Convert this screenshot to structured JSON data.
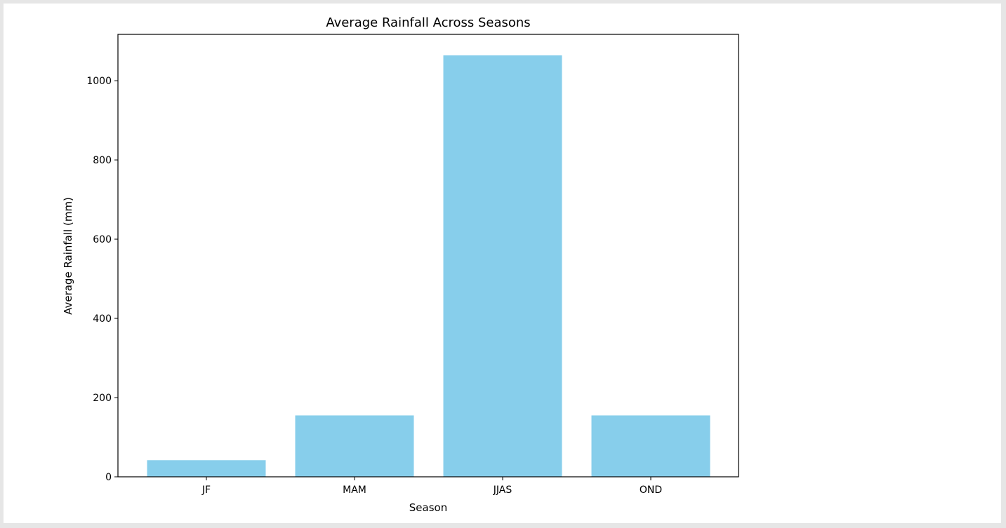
{
  "chart_data": {
    "type": "bar",
    "title": "Average Rainfall Across Seasons",
    "xlabel": "Season",
    "ylabel": "Average Rainfall (mm)",
    "categories": [
      "JF",
      "MAM",
      "JJAS",
      "OND"
    ],
    "values": [
      42,
      155,
      1064,
      155
    ],
    "ylim": [
      0,
      1117
    ],
    "yticks": [
      0,
      200,
      400,
      600,
      800,
      1000
    ],
    "grid": false,
    "bar_color": "#87ceeb"
  }
}
